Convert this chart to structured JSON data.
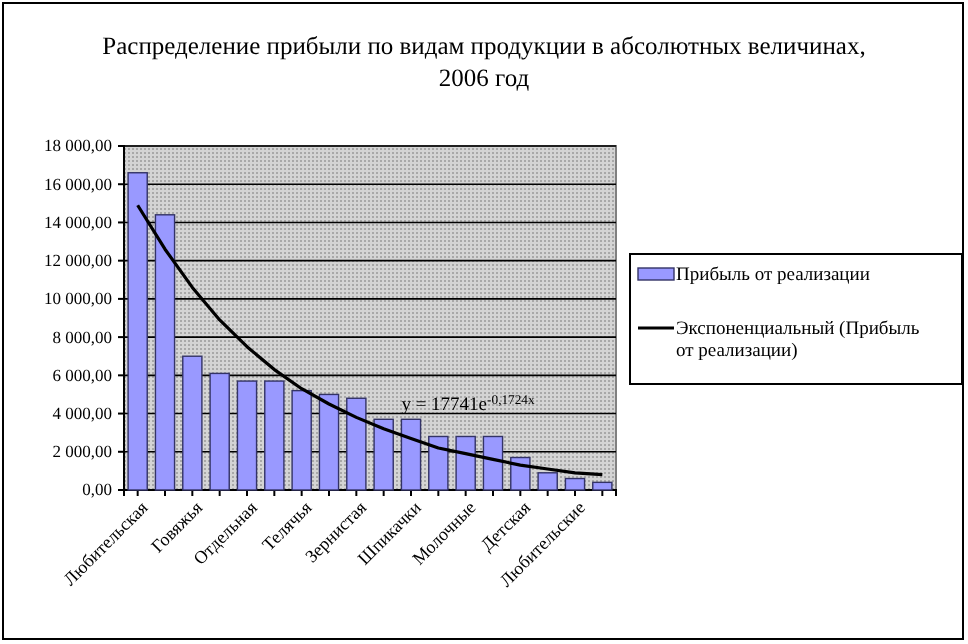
{
  "chart_data": {
    "type": "bar",
    "title": "Распределение прибыли по видам продукции в абсолютных величинах, 2006 год",
    "categories": [
      "Любительская",
      null,
      "Говяжья",
      null,
      "Отдельная",
      null,
      "Телячья",
      null,
      "Зернистая",
      null,
      "Шпикачки",
      null,
      "Молочные",
      null,
      "Детская",
      null,
      "Любительские",
      null
    ],
    "series": [
      {
        "name": "Прибыль от реализации",
        "color": "#9999ff",
        "values": [
          16600,
          14400,
          7000,
          6100,
          5700,
          5700,
          5200,
          5000,
          4800,
          3700,
          3700,
          2800,
          2800,
          2800,
          1700,
          900,
          600,
          400
        ]
      },
      {
        "name": "Экспоненциальный (Прибыль от реализации)",
        "type": "line",
        "color": "#000000",
        "values": [
          14900,
          12600,
          10600,
          8900,
          7500,
          6300,
          5300,
          4500,
          3800,
          3200,
          2700,
          2200,
          1900,
          1600,
          1300,
          1100,
          900,
          800
        ]
      }
    ],
    "ylim": [
      0,
      18000
    ],
    "yticks": [
      {
        "value": 0,
        "label": "0,00"
      },
      {
        "value": 2000,
        "label": "2 000,00"
      },
      {
        "value": 4000,
        "label": "4 000,00"
      },
      {
        "value": 6000,
        "label": "6 000,00"
      },
      {
        "value": 8000,
        "label": "8 000,00"
      },
      {
        "value": 10000,
        "label": "10 000,00"
      },
      {
        "value": 12000,
        "label": "12 000,00"
      },
      {
        "value": 14000,
        "label": "14 000,00"
      },
      {
        "value": 16000,
        "label": "16 000,00"
      },
      {
        "value": 18000,
        "label": "18 000,00"
      }
    ],
    "grid": "y",
    "legend": "right",
    "annotations": [
      {
        "text": "y = 17741e$^{-0,1724x}$",
        "x": "Шпикачки",
        "y": 4200
      }
    ]
  }
}
